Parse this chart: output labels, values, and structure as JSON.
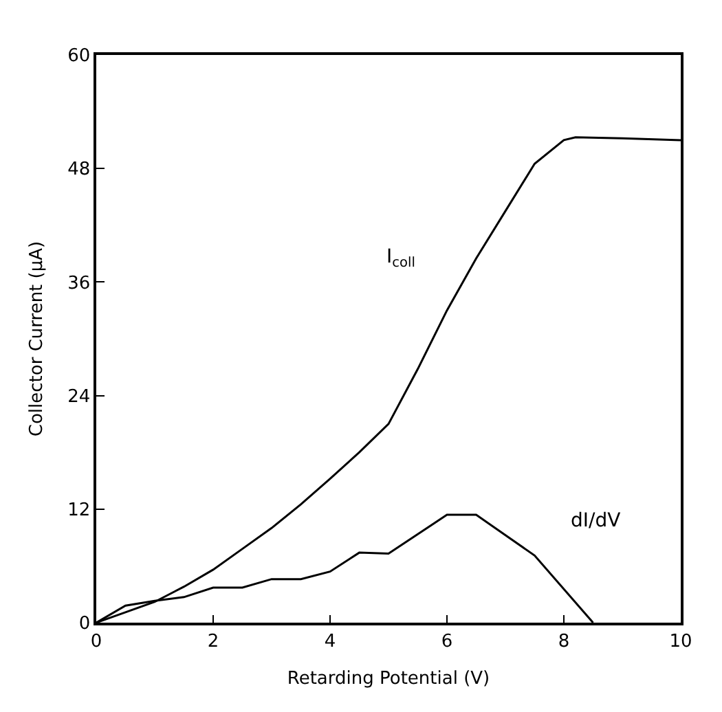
{
  "chart_data": {
    "type": "line",
    "xlabel": "Retarding Potential (V)",
    "ylabel": "Collector Current (μA)",
    "xlim": [
      0,
      10
    ],
    "ylim": [
      0,
      60
    ],
    "xticks": [
      0,
      2,
      4,
      6,
      8,
      10
    ],
    "yticks": [
      0,
      12,
      24,
      36,
      48,
      60
    ],
    "marker": "none",
    "line_style": "solid",
    "series": [
      {
        "name": "I$_{coll}$",
        "color": "#000000",
        "x": [
          0,
          0.5,
          1,
          1.5,
          2,
          2.5,
          3,
          3.5,
          4,
          4.5,
          5,
          5.5,
          6,
          6.5,
          7,
          7.5,
          8,
          8.2,
          9,
          10
        ],
        "values": [
          0,
          1.1,
          2.2,
          3.8,
          5.6,
          7.8,
          10,
          12.5,
          15.2,
          18,
          21,
          26.8,
          33,
          38.5,
          43.5,
          48.5,
          51,
          51.3,
          51.2,
          51
        ]
      },
      {
        "name": "dI/dV",
        "color": "#000000",
        "x": [
          0,
          0.5,
          1,
          1.5,
          2,
          2.5,
          3,
          3.5,
          4,
          4.5,
          5,
          6,
          6.5,
          7.5,
          8.5
        ],
        "values": [
          0,
          1.8,
          2.3,
          2.7,
          3.7,
          3.7,
          4.6,
          4.6,
          5.4,
          7.4,
          7.3,
          11.4,
          11.4,
          7.1,
          0
        ]
      }
    ]
  }
}
